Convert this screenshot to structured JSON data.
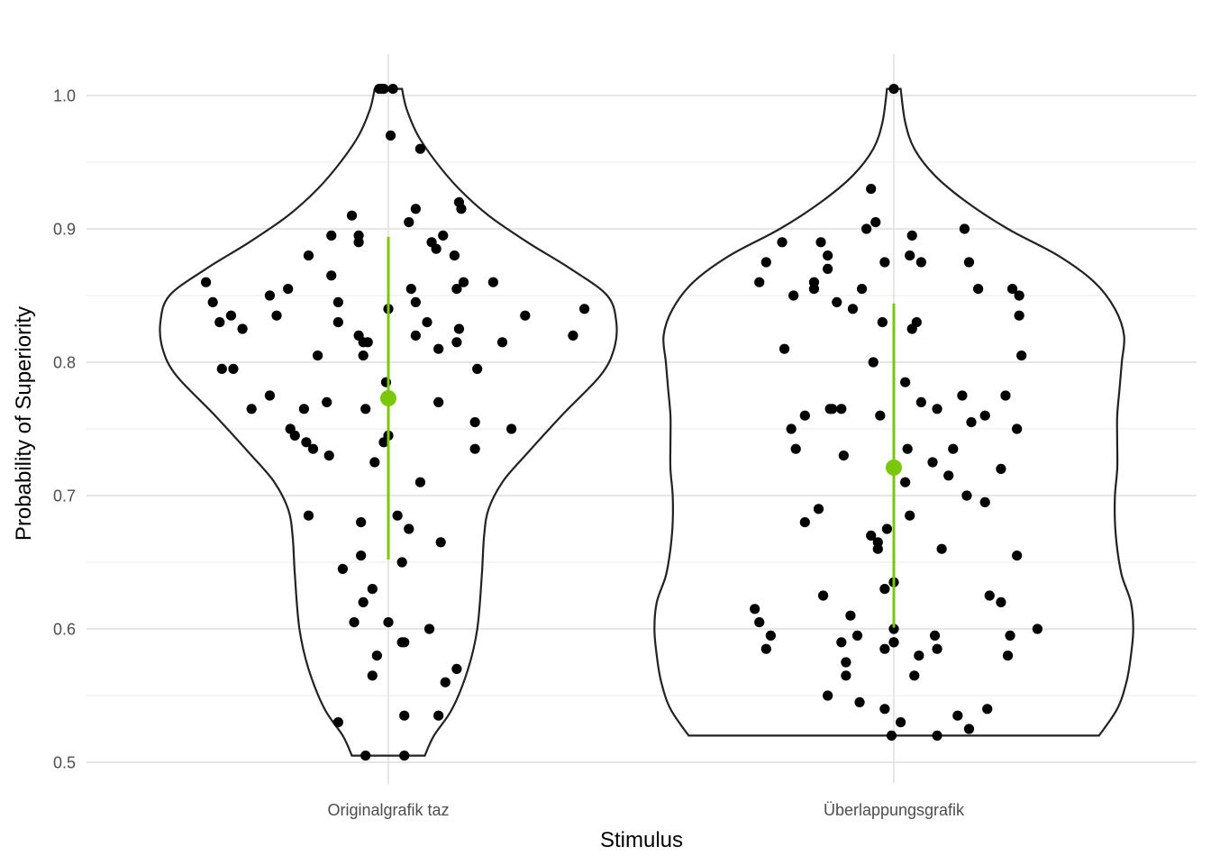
{
  "chart_data": {
    "type": "violin",
    "xlabel": "Stimulus",
    "ylabel": "Probability of Superiority",
    "categories": [
      "Originalgrafik taz",
      "Überlappungsgrafik"
    ],
    "ylim": [
      0.495,
      1.01
    ],
    "yticks": [
      0.5,
      0.6,
      0.7,
      0.8,
      0.9,
      1.0
    ],
    "ytick_labels": [
      "0.5",
      "0.6",
      "0.7",
      "0.8",
      "0.9",
      "1.0"
    ],
    "grid": true,
    "legend": "none",
    "colors": {
      "summary": "#7AC70C",
      "points": "#000000",
      "violin_outline": "#222222",
      "grid": "#e6e6e6"
    },
    "violin_density": [
      {
        "category": "Originalgrafik taz",
        "profile": [
          [
            0.505,
            0.16
          ],
          [
            0.52,
            0.2
          ],
          [
            0.54,
            0.28
          ],
          [
            0.57,
            0.35
          ],
          [
            0.6,
            0.39
          ],
          [
            0.64,
            0.41
          ],
          [
            0.67,
            0.42
          ],
          [
            0.69,
            0.44
          ],
          [
            0.71,
            0.5
          ],
          [
            0.73,
            0.6
          ],
          [
            0.76,
            0.76
          ],
          [
            0.79,
            0.93
          ],
          [
            0.81,
            0.99
          ],
          [
            0.83,
            1.0
          ],
          [
            0.85,
            0.96
          ],
          [
            0.87,
            0.8
          ],
          [
            0.89,
            0.61
          ],
          [
            0.91,
            0.44
          ],
          [
            0.93,
            0.31
          ],
          [
            0.95,
            0.21
          ],
          [
            0.97,
            0.13
          ],
          [
            0.99,
            0.08
          ],
          [
            1.005,
            0.06
          ]
        ]
      },
      {
        "category": "Überlappungsgrafik",
        "profile": [
          [
            0.52,
            0.9
          ],
          [
            0.54,
            0.98
          ],
          [
            0.56,
            1.02
          ],
          [
            0.58,
            1.04
          ],
          [
            0.6,
            1.05
          ],
          [
            0.62,
            1.04
          ],
          [
            0.64,
            1.0
          ],
          [
            0.66,
            0.98
          ],
          [
            0.68,
            0.97
          ],
          [
            0.7,
            0.97
          ],
          [
            0.72,
            0.98
          ],
          [
            0.74,
            0.98
          ],
          [
            0.76,
            0.98
          ],
          [
            0.78,
            0.99
          ],
          [
            0.8,
            1.0
          ],
          [
            0.82,
            1.01
          ],
          [
            0.84,
            0.97
          ],
          [
            0.86,
            0.88
          ],
          [
            0.88,
            0.72
          ],
          [
            0.9,
            0.5
          ],
          [
            0.92,
            0.32
          ],
          [
            0.94,
            0.18
          ],
          [
            0.96,
            0.09
          ],
          [
            0.98,
            0.05
          ],
          [
            1.005,
            0.03
          ]
        ]
      }
    ],
    "summary": [
      {
        "category": "Originalgrafik taz",
        "mean": 0.773,
        "low": 0.652,
        "high": 0.894
      },
      {
        "category": "Überlappungsgrafik",
        "mean": 0.721,
        "low": 0.601,
        "high": 0.844
      }
    ],
    "series": [
      {
        "category": "Originalgrafik taz",
        "points": [
          [
            -0.8,
            0.86
          ],
          [
            -0.77,
            0.845
          ],
          [
            -0.74,
            0.83
          ],
          [
            -0.73,
            0.795
          ],
          [
            -0.69,
            0.835
          ],
          [
            -0.68,
            0.795
          ],
          [
            -0.64,
            0.825
          ],
          [
            -0.6,
            0.765
          ],
          [
            -0.52,
            0.775
          ],
          [
            -0.52,
            0.85
          ],
          [
            -0.49,
            0.835
          ],
          [
            -0.44,
            0.855
          ],
          [
            -0.43,
            0.75
          ],
          [
            -0.41,
            0.745
          ],
          [
            -0.37,
            0.765
          ],
          [
            -0.36,
            0.74
          ],
          [
            -0.35,
            0.88
          ],
          [
            -0.33,
            0.735
          ],
          [
            -0.31,
            0.805
          ],
          [
            -0.27,
            0.77
          ],
          [
            -0.26,
            0.73
          ],
          [
            -0.25,
            0.895
          ],
          [
            -0.25,
            0.865
          ],
          [
            -0.22,
            0.83
          ],
          [
            -0.22,
            0.845
          ],
          [
            -0.2,
            0.645
          ],
          [
            -0.35,
            0.685
          ],
          [
            -0.22,
            0.53
          ],
          [
            -0.16,
            0.91
          ],
          [
            -0.15,
            0.605
          ],
          [
            -0.13,
            0.895
          ],
          [
            -0.13,
            0.89
          ],
          [
            -0.13,
            0.82
          ],
          [
            -0.12,
            0.68
          ],
          [
            -0.12,
            0.655
          ],
          [
            -0.11,
            0.62
          ],
          [
            -0.11,
            0.815
          ],
          [
            -0.11,
            0.805
          ],
          [
            -0.1,
            0.765
          ],
          [
            -0.1,
            0.505
          ],
          [
            -0.09,
            0.815
          ],
          [
            -0.07,
            0.63
          ],
          [
            -0.07,
            0.565
          ],
          [
            -0.06,
            0.725
          ],
          [
            -0.05,
            0.58
          ],
          [
            -0.04,
            1.005
          ],
          [
            -0.03,
            1.005
          ],
          [
            -0.02,
            1.005
          ],
          [
            0.02,
            1.005
          ],
          [
            -0.02,
            0.74
          ],
          [
            -0.01,
            0.785
          ],
          [
            0.0,
            0.605
          ],
          [
            0.0,
            0.745
          ],
          [
            0.0,
            0.84
          ],
          [
            0.01,
            0.97
          ],
          [
            0.04,
            0.685
          ],
          [
            0.06,
            0.65
          ],
          [
            0.06,
            0.59
          ],
          [
            0.07,
            0.535
          ],
          [
            0.07,
            0.505
          ],
          [
            0.07,
            0.59
          ],
          [
            0.09,
            0.675
          ],
          [
            0.09,
            0.905
          ],
          [
            0.1,
            0.855
          ],
          [
            0.12,
            0.845
          ],
          [
            0.12,
            0.82
          ],
          [
            0.12,
            0.915
          ],
          [
            0.14,
            0.71
          ],
          [
            0.14,
            0.96
          ],
          [
            0.17,
            0.83
          ],
          [
            0.18,
            0.6
          ],
          [
            0.19,
            0.89
          ],
          [
            0.21,
            0.885
          ],
          [
            0.22,
            0.81
          ],
          [
            0.22,
            0.77
          ],
          [
            0.22,
            0.535
          ],
          [
            0.23,
            0.665
          ],
          [
            0.24,
            0.895
          ],
          [
            0.25,
            0.56
          ],
          [
            0.29,
            0.88
          ],
          [
            0.3,
            0.855
          ],
          [
            0.3,
            0.815
          ],
          [
            0.31,
            0.825
          ],
          [
            0.3,
            0.57
          ],
          [
            0.31,
            0.92
          ],
          [
            0.32,
            0.915
          ],
          [
            0.33,
            0.86
          ],
          [
            0.38,
            0.735
          ],
          [
            0.38,
            0.755
          ],
          [
            0.39,
            0.795
          ],
          [
            0.46,
            0.86
          ],
          [
            0.5,
            0.815
          ],
          [
            0.54,
            0.75
          ],
          [
            0.6,
            0.835
          ],
          [
            0.81,
            0.82
          ],
          [
            0.86,
            0.84
          ]
        ]
      },
      {
        "category": "Überlappungsgrafik",
        "points": [
          [
            -0.61,
            0.615
          ],
          [
            -0.59,
            0.86
          ],
          [
            -0.59,
            0.605
          ],
          [
            -0.56,
            0.875
          ],
          [
            -0.56,
            0.585
          ],
          [
            -0.54,
            0.595
          ],
          [
            -0.49,
            0.89
          ],
          [
            -0.48,
            0.81
          ],
          [
            -0.45,
            0.75
          ],
          [
            -0.44,
            0.85
          ],
          [
            -0.43,
            0.735
          ],
          [
            -0.39,
            0.76
          ],
          [
            -0.39,
            0.68
          ],
          [
            -0.35,
            0.86
          ],
          [
            -0.35,
            0.855
          ],
          [
            -0.33,
            0.69
          ],
          [
            -0.32,
            0.89
          ],
          [
            -0.31,
            0.625
          ],
          [
            -0.29,
            0.55
          ],
          [
            -0.29,
            0.87
          ],
          [
            -0.29,
            0.88
          ],
          [
            -0.28,
            0.765
          ],
          [
            -0.27,
            0.765
          ],
          [
            -0.25,
            0.845
          ],
          [
            -0.23,
            0.59
          ],
          [
            -0.23,
            0.765
          ],
          [
            -0.22,
            0.73
          ],
          [
            -0.21,
            0.575
          ],
          [
            -0.21,
            0.565
          ],
          [
            -0.19,
            0.61
          ],
          [
            -0.18,
            0.84
          ],
          [
            -0.16,
            0.595
          ],
          [
            -0.15,
            0.545
          ],
          [
            -0.14,
            0.855
          ],
          [
            -0.12,
            0.9
          ],
          [
            -0.1,
            0.93
          ],
          [
            -0.1,
            0.67
          ],
          [
            -0.09,
            0.8
          ],
          [
            -0.08,
            0.905
          ],
          [
            -0.07,
            0.665
          ],
          [
            -0.07,
            0.66
          ],
          [
            -0.06,
            0.76
          ],
          [
            -0.05,
            0.83
          ],
          [
            -0.04,
            0.875
          ],
          [
            -0.04,
            0.585
          ],
          [
            -0.04,
            0.54
          ],
          [
            -0.04,
            0.63
          ],
          [
            -0.03,
            0.675
          ],
          [
            -0.01,
            0.52
          ],
          [
            0.0,
            0.6
          ],
          [
            0.0,
            0.635
          ],
          [
            0.0,
            0.59
          ],
          [
            0.0,
            0.59
          ],
          [
            0.0,
            1.005
          ],
          [
            0.03,
            0.53
          ],
          [
            0.05,
            0.785
          ],
          [
            0.05,
            0.71
          ],
          [
            0.06,
            0.735
          ],
          [
            0.07,
            0.88
          ],
          [
            0.07,
            0.685
          ],
          [
            0.08,
            0.895
          ],
          [
            0.08,
            0.825
          ],
          [
            0.09,
            0.565
          ],
          [
            0.1,
            0.83
          ],
          [
            0.11,
            0.58
          ],
          [
            0.12,
            0.875
          ],
          [
            0.12,
            0.77
          ],
          [
            0.17,
            0.725
          ],
          [
            0.18,
            0.595
          ],
          [
            0.19,
            0.585
          ],
          [
            0.19,
            0.765
          ],
          [
            0.19,
            0.52
          ],
          [
            0.21,
            0.66
          ],
          [
            0.24,
            0.715
          ],
          [
            0.26,
            0.735
          ],
          [
            0.28,
            0.535
          ],
          [
            0.3,
            0.775
          ],
          [
            0.31,
            0.9
          ],
          [
            0.32,
            0.7
          ],
          [
            0.33,
            0.875
          ],
          [
            0.33,
            0.525
          ],
          [
            0.34,
            0.755
          ],
          [
            0.37,
            0.855
          ],
          [
            0.4,
            0.76
          ],
          [
            0.4,
            0.695
          ],
          [
            0.41,
            0.54
          ],
          [
            0.42,
            0.625
          ],
          [
            0.47,
            0.72
          ],
          [
            0.47,
            0.62
          ],
          [
            0.49,
            0.775
          ],
          [
            0.5,
            0.58
          ],
          [
            0.51,
            0.595
          ],
          [
            0.52,
            0.855
          ],
          [
            0.54,
            0.75
          ],
          [
            0.54,
            0.655
          ],
          [
            0.55,
            0.835
          ],
          [
            0.55,
            0.85
          ],
          [
            0.56,
            0.805
          ],
          [
            0.63,
            0.6
          ]
        ]
      }
    ]
  }
}
